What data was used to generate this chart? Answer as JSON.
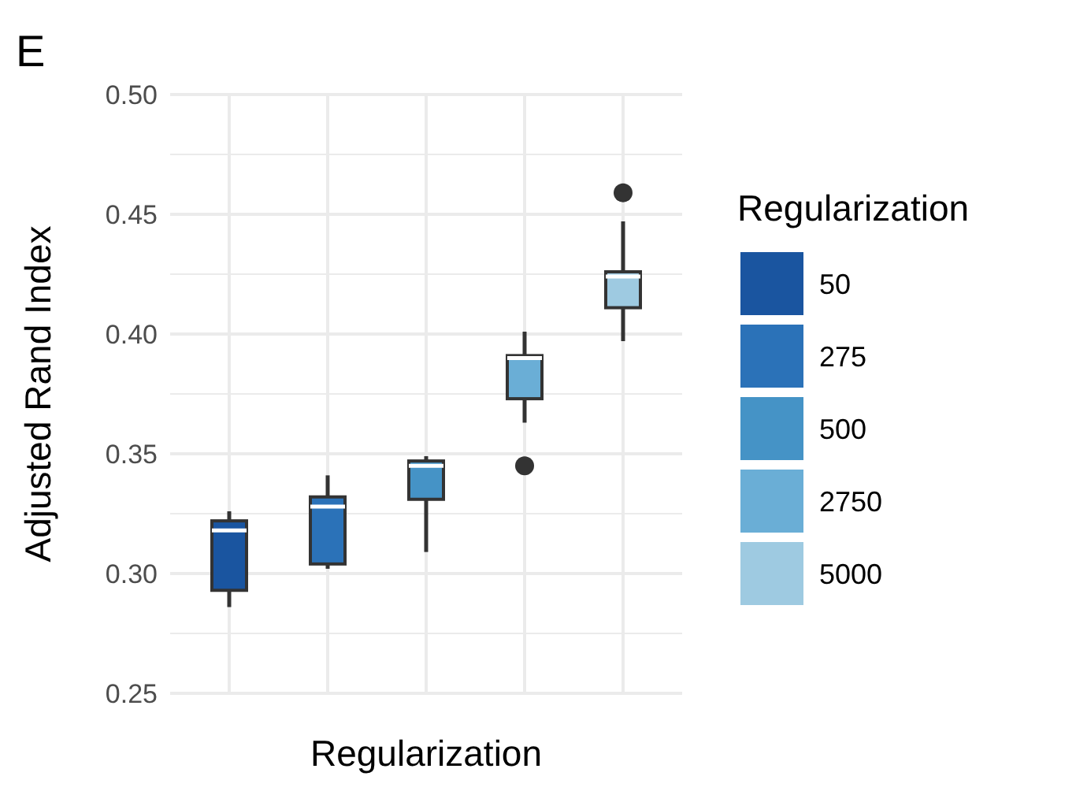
{
  "chart_data": {
    "type": "box",
    "title": "E",
    "xlabel": "Regularization",
    "ylabel": "Adjusted Rand Index",
    "legend_title": "Regularization",
    "categories": [
      null,
      null,
      null,
      null,
      null
    ],
    "series": [
      {
        "name": "50",
        "color": "#1a55a0",
        "boxes": [
          {
            "low": 0.286,
            "q1": 0.293,
            "median": 0.318,
            "q3": 0.322,
            "high": 0.326
          },
          null,
          null,
          null,
          null
        ]
      },
      {
        "name": "275",
        "color": "#2b72b8",
        "boxes": [
          null,
          {
            "low": 0.302,
            "q1": 0.304,
            "median": 0.328,
            "q3": 0.332,
            "high": 0.341
          },
          null,
          null,
          null
        ]
      },
      {
        "name": "500",
        "color": "#4593c6",
        "boxes": [
          null,
          null,
          {
            "low": 0.309,
            "q1": 0.331,
            "median": 0.345,
            "q3": 0.347,
            "high": 0.349
          },
          null,
          null
        ]
      },
      {
        "name": "2750",
        "color": "#6aaed6",
        "boxes": [
          null,
          null,
          null,
          {
            "low": 0.363,
            "q1": 0.373,
            "median": 0.39,
            "q3": 0.391,
            "high": 0.401,
            "outliers": [
              0.345
            ]
          },
          null
        ]
      },
      {
        "name": "5000",
        "color": "#9ecae1",
        "boxes": [
          null,
          null,
          null,
          null,
          {
            "low": 0.397,
            "q1": 0.411,
            "median": 0.424,
            "q3": 0.426,
            "high": 0.447,
            "outliers": [
              0.459
            ]
          }
        ]
      }
    ],
    "ylim": [
      0.25,
      0.5
    ],
    "yticks": [
      0.25,
      {
        "value": 0.3,
        "label": "0.30"
      },
      0.35,
      {
        "value": 0.4,
        "label": "0.40"
      },
      0.45,
      {
        "value": 0.5,
        "label": "0.50"
      }
    ],
    "grid": true,
    "legend": "right",
    "tick_labels": "y"
  }
}
